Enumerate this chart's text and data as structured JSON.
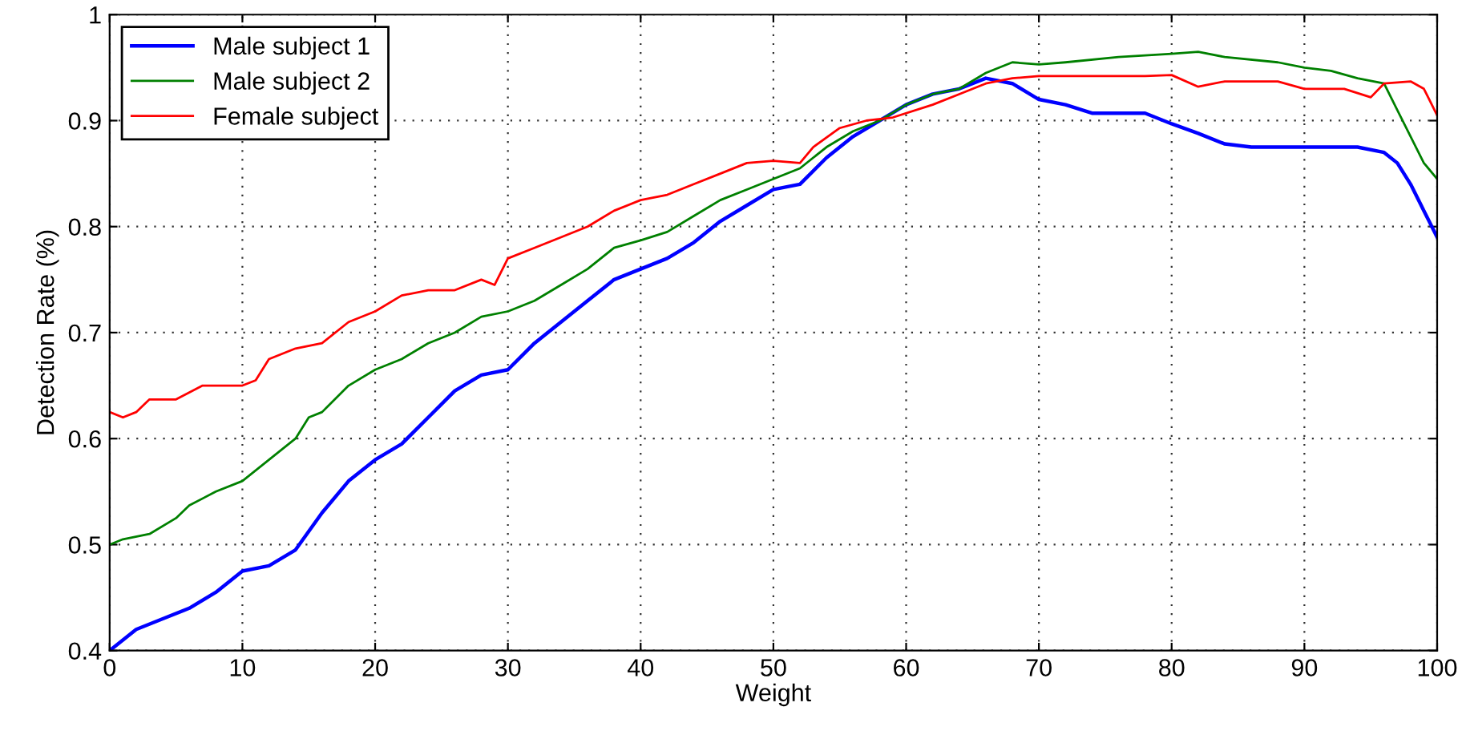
{
  "chart_data": {
    "type": "line",
    "xlabel": "Weight",
    "ylabel": "Detection Rate (%)",
    "xlim": [
      0,
      100
    ],
    "ylim": [
      0.4,
      1
    ],
    "xticks": [
      0,
      10,
      20,
      30,
      40,
      50,
      60,
      70,
      80,
      90,
      100
    ],
    "yticks": [
      0.4,
      0.5,
      0.6,
      0.7,
      0.8,
      0.9,
      1
    ],
    "grid": true,
    "legend": "top left",
    "line_style": "solid",
    "marker": "none",
    "series": [
      {
        "name": "Male subject 1",
        "color": "#0000ff",
        "x": [
          0,
          2,
          4,
          6,
          8,
          10,
          12,
          14,
          16,
          18,
          20,
          22,
          24,
          26,
          28,
          30,
          32,
          34,
          36,
          38,
          40,
          42,
          44,
          46,
          48,
          50,
          52,
          54,
          56,
          58,
          60,
          62,
          64,
          66,
          68,
          70,
          72,
          74,
          78,
          80,
          82,
          84,
          86,
          94,
          96,
          97,
          98,
          99,
          100
        ],
        "values": [
          0.4,
          0.42,
          0.43,
          0.44,
          0.455,
          0.475,
          0.48,
          0.495,
          0.53,
          0.56,
          0.58,
          0.595,
          0.62,
          0.645,
          0.66,
          0.665,
          0.69,
          0.71,
          0.73,
          0.75,
          0.76,
          0.77,
          0.785,
          0.805,
          0.82,
          0.835,
          0.84,
          0.865,
          0.885,
          0.9,
          0.915,
          0.925,
          0.93,
          0.94,
          0.935,
          0.92,
          0.915,
          0.907,
          0.907,
          0.897,
          0.888,
          0.878,
          0.875,
          0.875,
          0.87,
          0.86,
          0.84,
          0.815,
          0.79
        ]
      },
      {
        "name": "Male subject 2",
        "color": "#008000",
        "x": [
          0,
          1,
          3,
          5,
          6,
          8,
          10,
          12,
          14,
          15,
          16,
          18,
          20,
          22,
          24,
          26,
          28,
          30,
          32,
          34,
          36,
          38,
          40,
          42,
          44,
          46,
          48,
          50,
          52,
          54,
          56,
          58,
          60,
          62,
          64,
          66,
          68,
          70,
          72,
          76,
          80,
          82,
          84,
          88,
          90,
          92,
          94,
          96,
          97,
          98,
          99,
          100
        ],
        "values": [
          0.5,
          0.505,
          0.51,
          0.525,
          0.537,
          0.55,
          0.56,
          0.58,
          0.6,
          0.62,
          0.625,
          0.65,
          0.665,
          0.675,
          0.69,
          0.7,
          0.715,
          0.72,
          0.73,
          0.745,
          0.76,
          0.78,
          0.787,
          0.795,
          0.81,
          0.825,
          0.835,
          0.845,
          0.855,
          0.875,
          0.89,
          0.9,
          0.915,
          0.925,
          0.93,
          0.945,
          0.955,
          0.953,
          0.955,
          0.96,
          0.963,
          0.965,
          0.96,
          0.955,
          0.95,
          0.947,
          0.94,
          0.935,
          0.91,
          0.885,
          0.86,
          0.845
        ]
      },
      {
        "name": "Female subject",
        "color": "#ff0000",
        "x": [
          0,
          1,
          2,
          3,
          5,
          7,
          10,
          11,
          12,
          14,
          16,
          18,
          20,
          22,
          24,
          26,
          28,
          29,
          30,
          32,
          34,
          36,
          38,
          40,
          42,
          44,
          46,
          48,
          50,
          52,
          53,
          55,
          57,
          59,
          62,
          64,
          66,
          68,
          70,
          78,
          80,
          82,
          84,
          88,
          90,
          93,
          95,
          96,
          98,
          99,
          100
        ],
        "values": [
          0.625,
          0.62,
          0.625,
          0.637,
          0.637,
          0.65,
          0.65,
          0.655,
          0.675,
          0.685,
          0.69,
          0.71,
          0.72,
          0.735,
          0.74,
          0.74,
          0.75,
          0.745,
          0.77,
          0.78,
          0.79,
          0.8,
          0.815,
          0.825,
          0.83,
          0.84,
          0.85,
          0.86,
          0.862,
          0.86,
          0.875,
          0.893,
          0.9,
          0.903,
          0.915,
          0.925,
          0.935,
          0.94,
          0.942,
          0.942,
          0.943,
          0.932,
          0.937,
          0.937,
          0.93,
          0.93,
          0.922,
          0.935,
          0.937,
          0.93,
          0.905
        ]
      }
    ]
  }
}
